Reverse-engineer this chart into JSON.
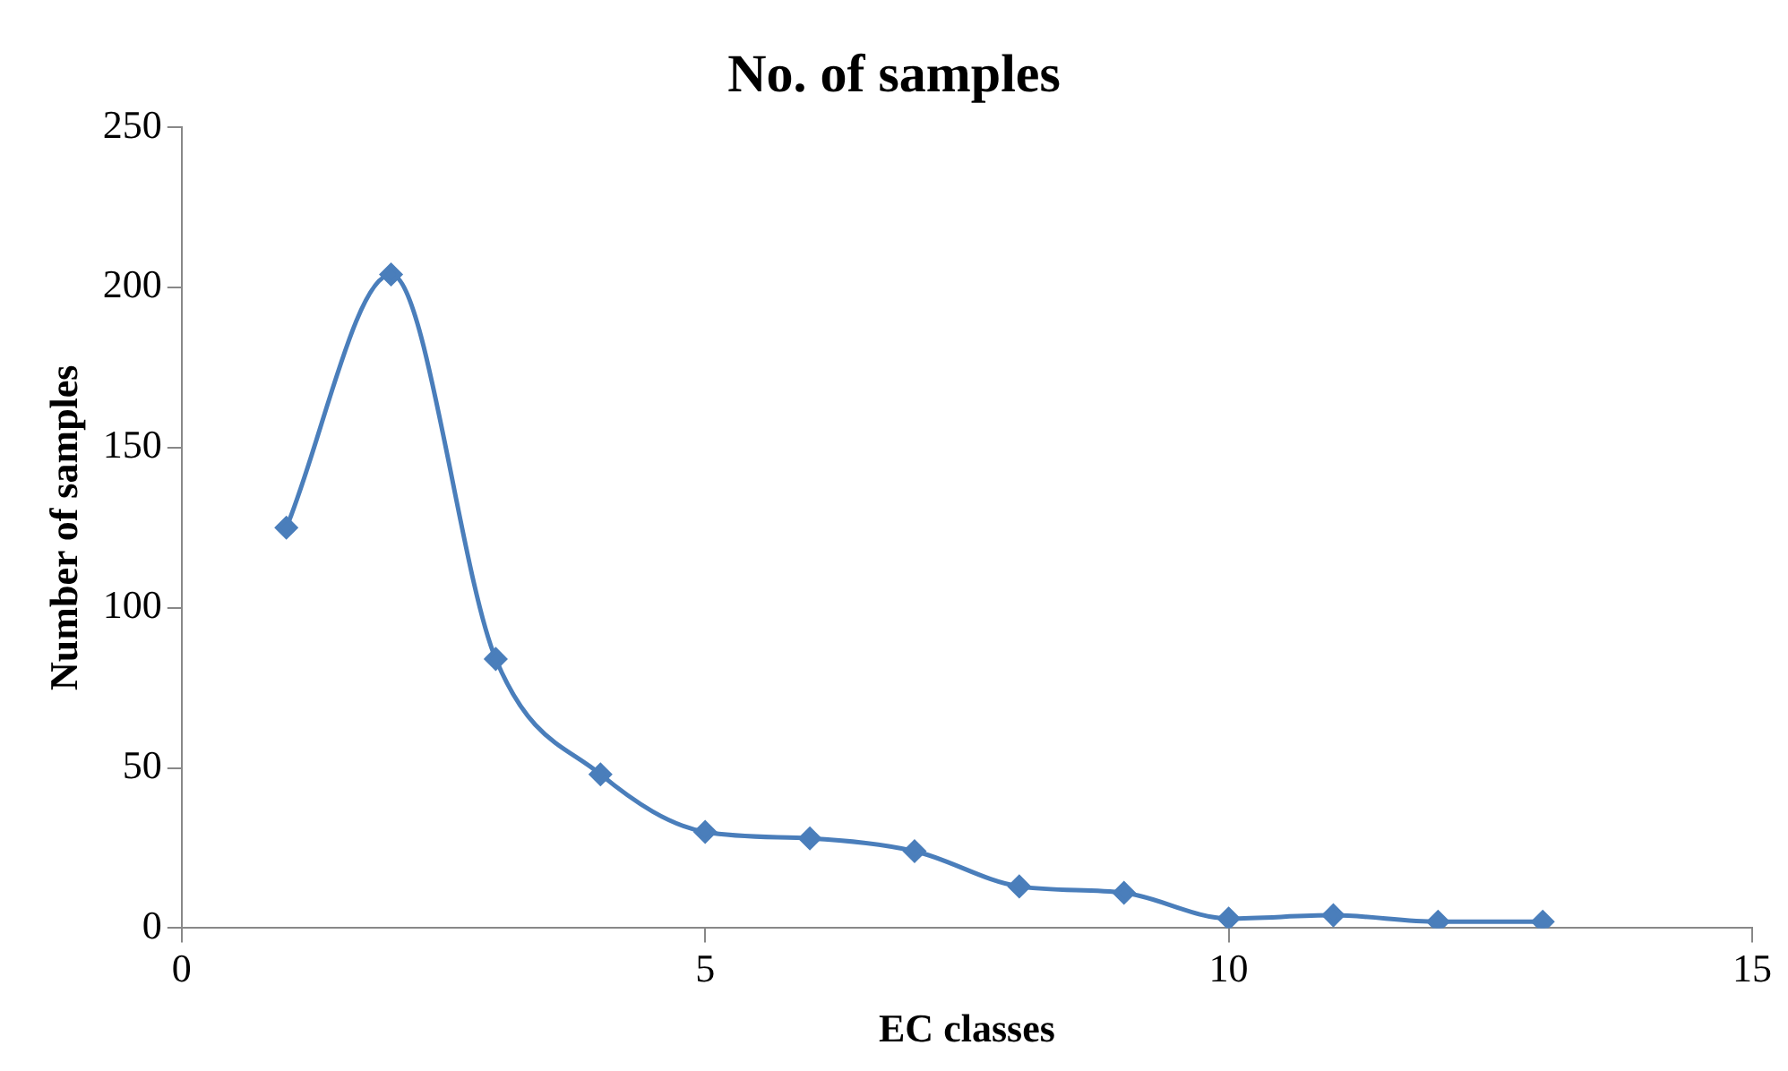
{
  "chart_data": {
    "type": "line",
    "title": "No. of samples",
    "xlabel": "EC classes",
    "ylabel": "Number of samples",
    "x": [
      1,
      2,
      3,
      4,
      5,
      6,
      7,
      8,
      9,
      10,
      11,
      12,
      13
    ],
    "series": [
      {
        "color": "#4a7ebb",
        "values": [
          125,
          204,
          84,
          48,
          30,
          28,
          24,
          13,
          11,
          3,
          4,
          2,
          2
        ]
      }
    ],
    "xlim": [
      0,
      15
    ],
    "xticks": [
      0,
      5,
      10,
      15
    ],
    "ylim": [
      0,
      250
    ],
    "yticks": [
      0,
      50,
      100,
      150,
      200,
      250
    ],
    "grid": false,
    "legend": false,
    "marker": "diamond",
    "line_style": "solid"
  }
}
